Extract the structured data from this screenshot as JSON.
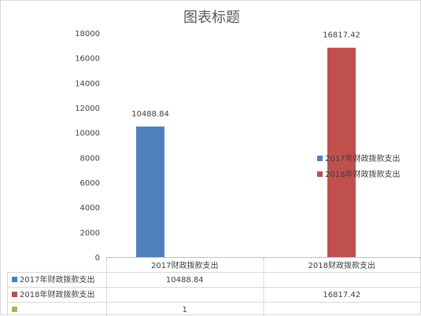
{
  "chart_data": {
    "type": "bar",
    "title": "图表标题",
    "categories": [
      "2017财政拨款支出",
      "2018财政拨款支出"
    ],
    "series": [
      {
        "name": "2017年财政拨款支出",
        "color": "#4f81bd",
        "values": [
          10488.84,
          null
        ],
        "labels": [
          "10488.84",
          ""
        ]
      },
      {
        "name": "2018年财政拨款支出",
        "color": "#c0504d",
        "values": [
          null,
          16817.42
        ],
        "labels": [
          "",
          "16817.42"
        ]
      },
      {
        "name": "",
        "color": "#9bbb59",
        "values": [
          1,
          null
        ],
        "labels": [
          "1",
          ""
        ]
      }
    ],
    "ylim": [
      0,
      18000
    ],
    "yticks": [
      "0",
      "2000",
      "4000",
      "6000",
      "8000",
      "10000",
      "12000",
      "14000",
      "16000",
      "18000"
    ],
    "legend_position": "right",
    "grid": false,
    "data_table": true
  }
}
